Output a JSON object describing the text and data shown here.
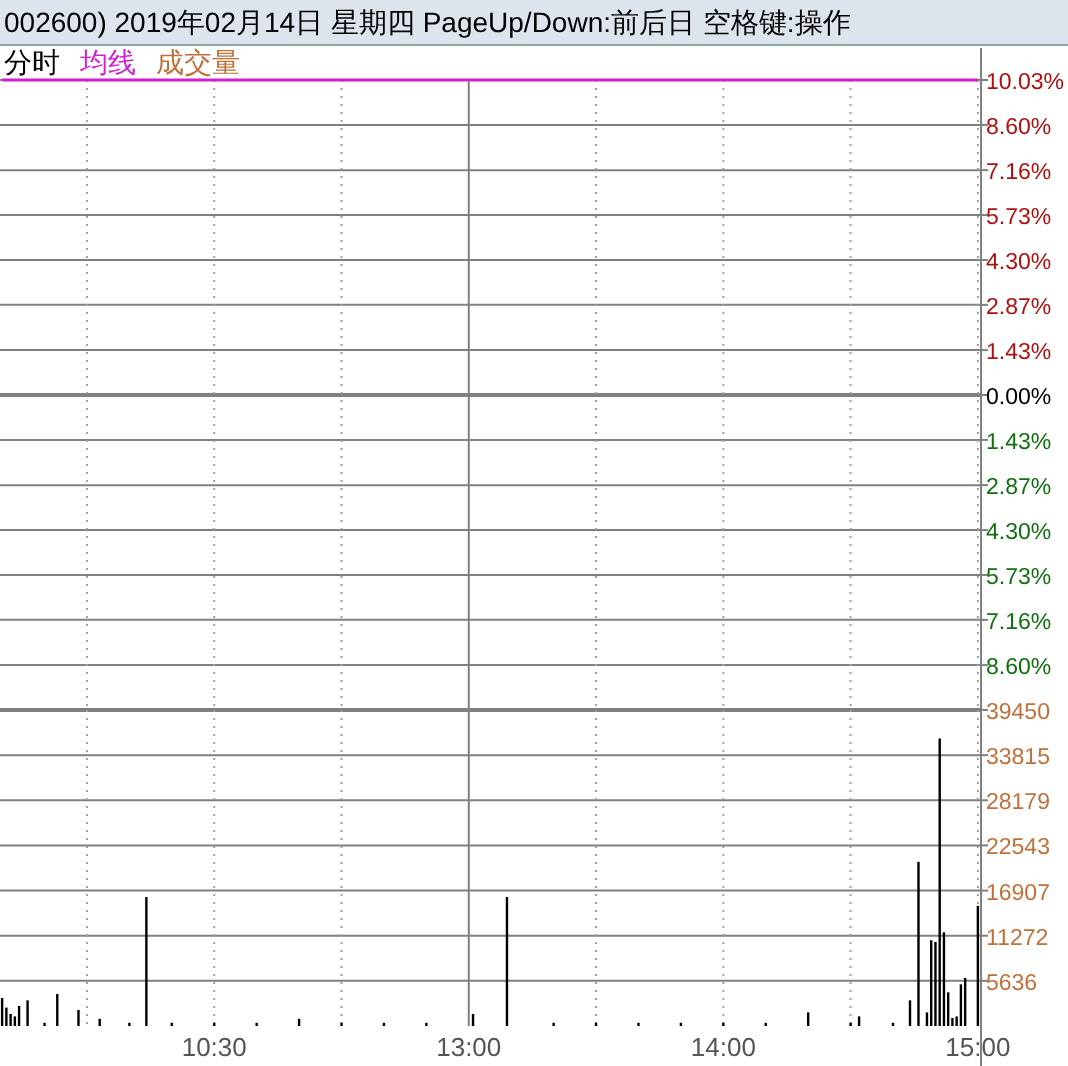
{
  "chart_data": [
    {
      "type": "line",
      "title": "002600) 2019年02月14日 星期四 PageUp/Down:前后日 空格键:操作",
      "annotations": [
        "分时"
      ],
      "categories": [
        null,
        null,
        null,
        null,
        null,
        null,
        null,
        null,
        null,
        null,
        null,
        null,
        null,
        null,
        null,
        null,
        null,
        null,
        null,
        null,
        null,
        null,
        null,
        null,
        null,
        null,
        null,
        null,
        null,
        null,
        null,
        null,
        null,
        null,
        null,
        null,
        null,
        null,
        null,
        null,
        null,
        null,
        null,
        null,
        null,
        null,
        null,
        null,
        null,
        null,
        null,
        null,
        null,
        null,
        null,
        null,
        null,
        null,
        null,
        null,
        null,
        null,
        null,
        null,
        null,
        null,
        null,
        null,
        null,
        null,
        null,
        null,
        null,
        null,
        null,
        null,
        null,
        null,
        null,
        null,
        null,
        null,
        null,
        null,
        null,
        null,
        null,
        null,
        null,
        null,
        null,
        null,
        null,
        null,
        null,
        null,
        null,
        null,
        null,
        null,
        null,
        null,
        null,
        null,
        null,
        null,
        null,
        null,
        null,
        null,
        null,
        null,
        null,
        null,
        null,
        null,
        null,
        null,
        null,
        null,
        null,
        null,
        null,
        null,
        null,
        null,
        null,
        null,
        null,
        null,
        null,
        null,
        null,
        null,
        null,
        null,
        null,
        null,
        null,
        null,
        null,
        null,
        null,
        null,
        null,
        null,
        null,
        null,
        null,
        null,
        null,
        null,
        null,
        null,
        null,
        null,
        null,
        null,
        null,
        null,
        null,
        null,
        null,
        null,
        null,
        null,
        null,
        null,
        null,
        null,
        null,
        null,
        null,
        null,
        null,
        null,
        null,
        null,
        null,
        null,
        null,
        null,
        null,
        null,
        null,
        null,
        null,
        null,
        null,
        null,
        null,
        null,
        null,
        null,
        null,
        null,
        null,
        null,
        null,
        null,
        null,
        null,
        null,
        null,
        null,
        null,
        null,
        null,
        null,
        null,
        null,
        null,
        null,
        null,
        null,
        null,
        null,
        null,
        null,
        null,
        null,
        null,
        null,
        null,
        null,
        null,
        null,
        null,
        null,
        null,
        null
      ],
      "series": [
        {
          "name": "均线",
          "color": "#d020d0",
          "values": [
            10.03,
            10.03,
            10.03,
            10.03,
            10.03,
            10.03,
            10.03,
            10.03,
            10.03,
            10.03,
            10.03,
            10.03,
            10.03,
            10.03,
            10.03,
            10.03,
            10.03,
            10.03,
            10.03,
            10.03,
            10.03,
            10.03,
            10.03,
            10.03,
            10.03,
            10.03,
            10.03,
            10.03,
            10.03,
            10.03,
            10.03,
            10.03,
            10.03,
            10.03,
            10.03,
            10.03,
            10.03,
            10.03,
            10.03,
            10.03,
            10.03,
            10.03,
            10.03,
            10.03,
            10.03,
            10.03,
            10.03,
            10.03,
            10.03,
            10.03,
            10.03,
            10.03,
            10.03,
            10.03,
            10.03,
            10.03,
            10.03,
            10.03,
            10.03,
            10.03,
            10.03,
            10.03,
            10.03,
            10.03,
            10.03,
            10.03,
            10.03,
            10.03,
            10.03,
            10.03,
            10.03,
            10.03,
            10.03,
            10.03,
            10.03,
            10.03,
            10.03,
            10.03,
            10.03,
            10.03,
            10.03,
            10.03,
            10.03,
            10.03,
            10.03,
            10.03,
            10.03,
            10.03,
            10.03,
            10.03,
            10.03,
            10.03,
            10.03,
            10.03,
            10.03,
            10.03,
            10.03,
            10.03,
            10.03,
            10.03,
            10.03,
            10.03,
            10.03,
            10.03,
            10.03,
            10.03,
            10.03,
            10.03,
            10.03,
            10.03,
            10.03,
            10.03,
            10.03,
            10.03,
            10.03,
            10.03,
            10.03,
            10.03,
            10.03,
            10.03,
            10.03,
            10.03,
            10.03,
            10.03,
            10.03,
            10.03,
            10.03,
            10.03,
            10.03,
            10.03,
            10.03,
            10.03,
            10.03,
            10.03,
            10.03,
            10.03,
            10.03,
            10.03,
            10.03,
            10.03,
            10.03,
            10.03,
            10.03,
            10.03,
            10.03,
            10.03,
            10.03,
            10.03,
            10.03,
            10.03,
            10.03,
            10.03,
            10.03,
            10.03,
            10.03,
            10.03,
            10.03,
            10.03,
            10.03,
            10.03,
            10.03,
            10.03,
            10.03,
            10.03,
            10.03,
            10.03,
            10.03,
            10.03,
            10.03,
            10.03,
            10.03,
            10.03,
            10.03,
            10.03,
            10.03,
            10.03,
            10.03,
            10.03,
            10.03,
            10.03,
            10.03,
            10.03,
            10.03,
            10.03,
            10.03,
            10.03,
            10.03,
            10.03,
            10.03,
            10.03,
            10.03,
            10.03,
            10.03,
            10.03,
            10.03,
            10.03,
            10.03,
            10.03,
            10.03,
            10.03,
            10.03,
            10.03,
            10.03,
            10.03,
            10.03,
            10.03,
            10.03,
            10.03,
            10.03,
            10.03,
            10.03,
            10.03,
            10.03,
            10.03,
            10.03,
            10.03,
            10.03,
            10.03,
            10.03,
            10.03,
            10.03,
            10.03,
            10.03,
            10.03,
            10.03,
            10.03,
            10.03,
            10.03,
            10.03,
            10.03,
            10.03
          ]
        }
      ],
      "ylim": [
        -10.03,
        10.03
      ],
      "yticks": [
        {
          "value": 10.03,
          "label": "10.03%"
        },
        {
          "value": 8.6,
          "label": "8.60%"
        },
        {
          "value": 7.16,
          "label": "7.16%"
        },
        {
          "value": 5.73,
          "label": "5.73%"
        },
        {
          "value": 4.3,
          "label": "4.30%"
        },
        {
          "value": 2.87,
          "label": "2.87%"
        },
        {
          "value": 1.43,
          "label": "1.43%"
        },
        {
          "value": 0,
          "label": "0.00%"
        },
        {
          "value": -1.43,
          "label": "1.43%"
        },
        {
          "value": -2.87,
          "label": "2.87%"
        },
        {
          "value": -4.3,
          "label": "4.30%"
        },
        {
          "value": -5.73,
          "label": "5.73%"
        },
        {
          "value": -7.16,
          "label": "7.16%"
        },
        {
          "value": -8.6,
          "label": "8.60%"
        }
      ],
      "tick_labels": "y",
      "grid": true,
      "legend": "top left"
    },
    {
      "type": "bar",
      "annotations": [
        "成交量"
      ],
      "categories": [
        null,
        null,
        null,
        null,
        null,
        null,
        null,
        null,
        null,
        null,
        null,
        null,
        null,
        null,
        null,
        null,
        null,
        null,
        null,
        null,
        null,
        null,
        null,
        null,
        null,
        null,
        null,
        null,
        null,
        null,
        null,
        null,
        null,
        null,
        null,
        null,
        null,
        null,
        null,
        null,
        null,
        null,
        null,
        null,
        null,
        null,
        null,
        null,
        null,
        null,
        "10:30",
        null,
        null,
        null,
        null,
        null,
        null,
        null,
        null,
        null,
        null,
        null,
        null,
        null,
        null,
        null,
        null,
        null,
        null,
        null,
        null,
        null,
        null,
        null,
        null,
        null,
        null,
        null,
        null,
        null,
        null,
        null,
        null,
        null,
        null,
        null,
        null,
        null,
        null,
        null,
        null,
        null,
        null,
        null,
        null,
        null,
        null,
        null,
        null,
        null,
        null,
        null,
        null,
        null,
        null,
        null,
        null,
        null,
        null,
        null,
        "13:00",
        null,
        null,
        null,
        null,
        null,
        null,
        null,
        null,
        null,
        null,
        null,
        null,
        null,
        null,
        null,
        null,
        null,
        null,
        null,
        null,
        null,
        null,
        null,
        null,
        null,
        null,
        null,
        null,
        null,
        null,
        null,
        null,
        null,
        null,
        null,
        null,
        null,
        null,
        null,
        null,
        null,
        null,
        null,
        null,
        null,
        null,
        null,
        null,
        null,
        null,
        null,
        null,
        null,
        null,
        null,
        null,
        null,
        null,
        null,
        "14:00",
        null,
        null,
        null,
        null,
        null,
        null,
        null,
        null,
        null,
        null,
        null,
        null,
        null,
        null,
        null,
        null,
        null,
        null,
        null,
        null,
        null,
        null,
        null,
        null,
        null,
        null,
        null,
        null,
        null,
        null,
        null,
        null,
        null,
        null,
        null,
        null,
        null,
        null,
        null,
        null,
        null,
        null,
        null,
        null,
        null,
        null,
        null,
        null,
        null,
        null,
        null,
        null,
        null,
        null,
        null,
        null,
        null,
        null,
        null,
        "15:00"
      ],
      "series": [
        {
          "color": "#000000",
          "values": [
            3500,
            2300,
            1500,
            1200,
            2500,
            null,
            3200,
            null,
            null,
            null,
            400,
            null,
            null,
            4000,
            null,
            null,
            null,
            null,
            2000,
            null,
            null,
            null,
            null,
            900,
            null,
            null,
            null,
            null,
            null,
            null,
            400,
            null,
            null,
            null,
            16100,
            null,
            null,
            null,
            null,
            null,
            400,
            null,
            null,
            null,
            null,
            null,
            null,
            null,
            null,
            null,
            400,
            null,
            null,
            null,
            null,
            null,
            null,
            null,
            null,
            null,
            400,
            null,
            null,
            null,
            null,
            null,
            null,
            null,
            null,
            null,
            900,
            null,
            null,
            null,
            null,
            null,
            null,
            null,
            null,
            null,
            400,
            null,
            null,
            null,
            null,
            null,
            null,
            null,
            null,
            null,
            400,
            null,
            null,
            null,
            null,
            null,
            null,
            null,
            null,
            null,
            400,
            null,
            null,
            null,
            null,
            null,
            null,
            null,
            null,
            null,
            null,
            1500,
            null,
            null,
            null,
            null,
            null,
            null,
            null,
            16100,
            null,
            null,
            null,
            null,
            null,
            null,
            null,
            null,
            null,
            null,
            400,
            null,
            null,
            null,
            null,
            null,
            null,
            null,
            null,
            null,
            400,
            null,
            null,
            null,
            null,
            null,
            null,
            null,
            null,
            null,
            400,
            null,
            null,
            null,
            null,
            null,
            null,
            null,
            null,
            null,
            400,
            null,
            null,
            null,
            null,
            null,
            null,
            null,
            null,
            null,
            400,
            null,
            null,
            null,
            null,
            null,
            null,
            null,
            null,
            null,
            400,
            null,
            null,
            null,
            null,
            null,
            null,
            null,
            null,
            null,
            1700,
            null,
            null,
            null,
            null,
            null,
            null,
            null,
            null,
            null,
            400,
            null,
            1200,
            null,
            null,
            null,
            null,
            null,
            null,
            null,
            400,
            null,
            null,
            null,
            3200,
            null,
            20500,
            null,
            1700,
            10700,
            10500,
            35900,
            11700,
            4200,
            1000,
            1200,
            5200,
            6000,
            null,
            null,
            15000
          ]
        }
      ],
      "ylim": [
        0,
        39450
      ],
      "yticks": [
        5636,
        11272,
        16907,
        22543,
        28179,
        33815,
        39450
      ],
      "grid": true
    }
  ]
}
